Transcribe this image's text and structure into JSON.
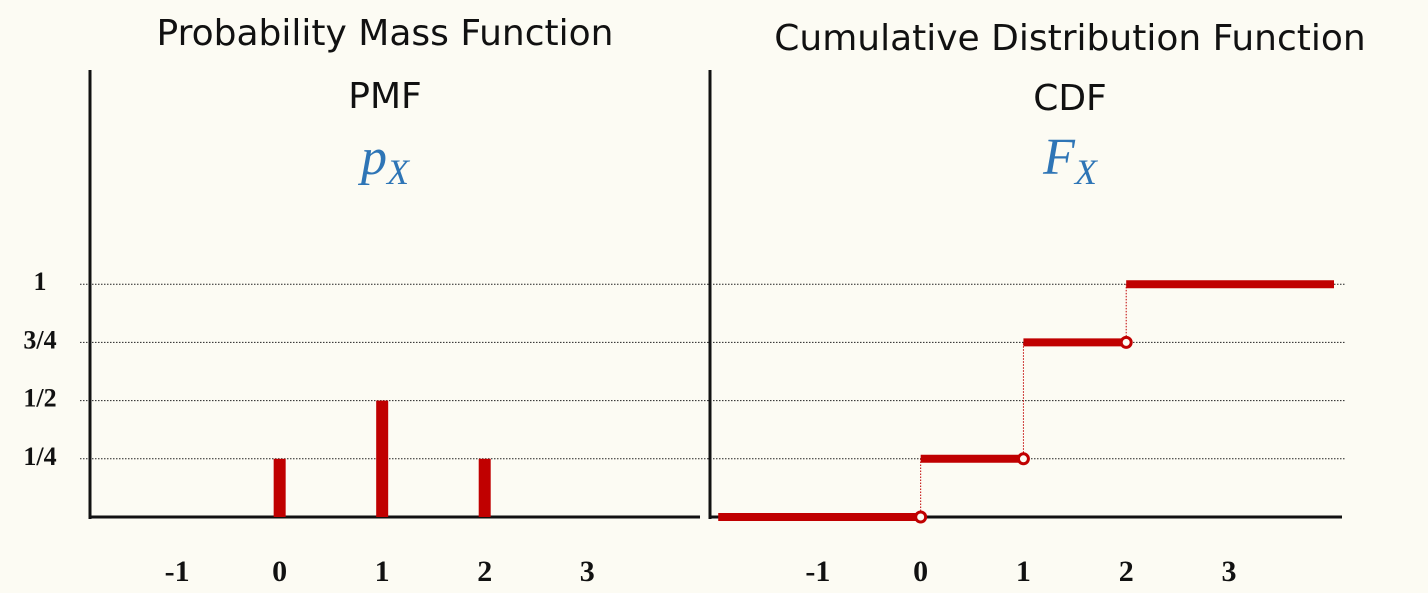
{
  "chart_data": [
    {
      "type": "bar",
      "title": "Probability Mass Function",
      "subtitle": "PMF",
      "symbol": {
        "base": "p",
        "sub": "X"
      },
      "categories": [
        0,
        1,
        2
      ],
      "values": [
        0.25,
        0.5,
        0.25
      ],
      "color": "#c00000",
      "xlim": [
        -1.85,
        4.1
      ],
      "xticks": [
        -1,
        0,
        1,
        2,
        3
      ],
      "ylim": [
        0,
        1.92
      ],
      "yticks": [
        {
          "value": 0.25,
          "label": "1/4"
        },
        {
          "value": 0.5,
          "label": "1/2"
        },
        {
          "value": 0.75,
          "label": "3/4"
        },
        1
      ],
      "grid": true
    },
    {
      "type": "step",
      "title": "Cumulative Distribution Function",
      "subtitle": "CDF",
      "symbol": {
        "base": "F",
        "sub": "X"
      },
      "x": [
        -1.97,
        0,
        1,
        2
      ],
      "values": [
        0,
        0.25,
        0.75,
        1
      ],
      "color": "#c00000",
      "xlim": [
        -2.05,
        4.1
      ],
      "xticks": [
        -1,
        0,
        1,
        2,
        3
      ],
      "ylim": [
        0,
        1.92
      ]
    }
  ]
}
